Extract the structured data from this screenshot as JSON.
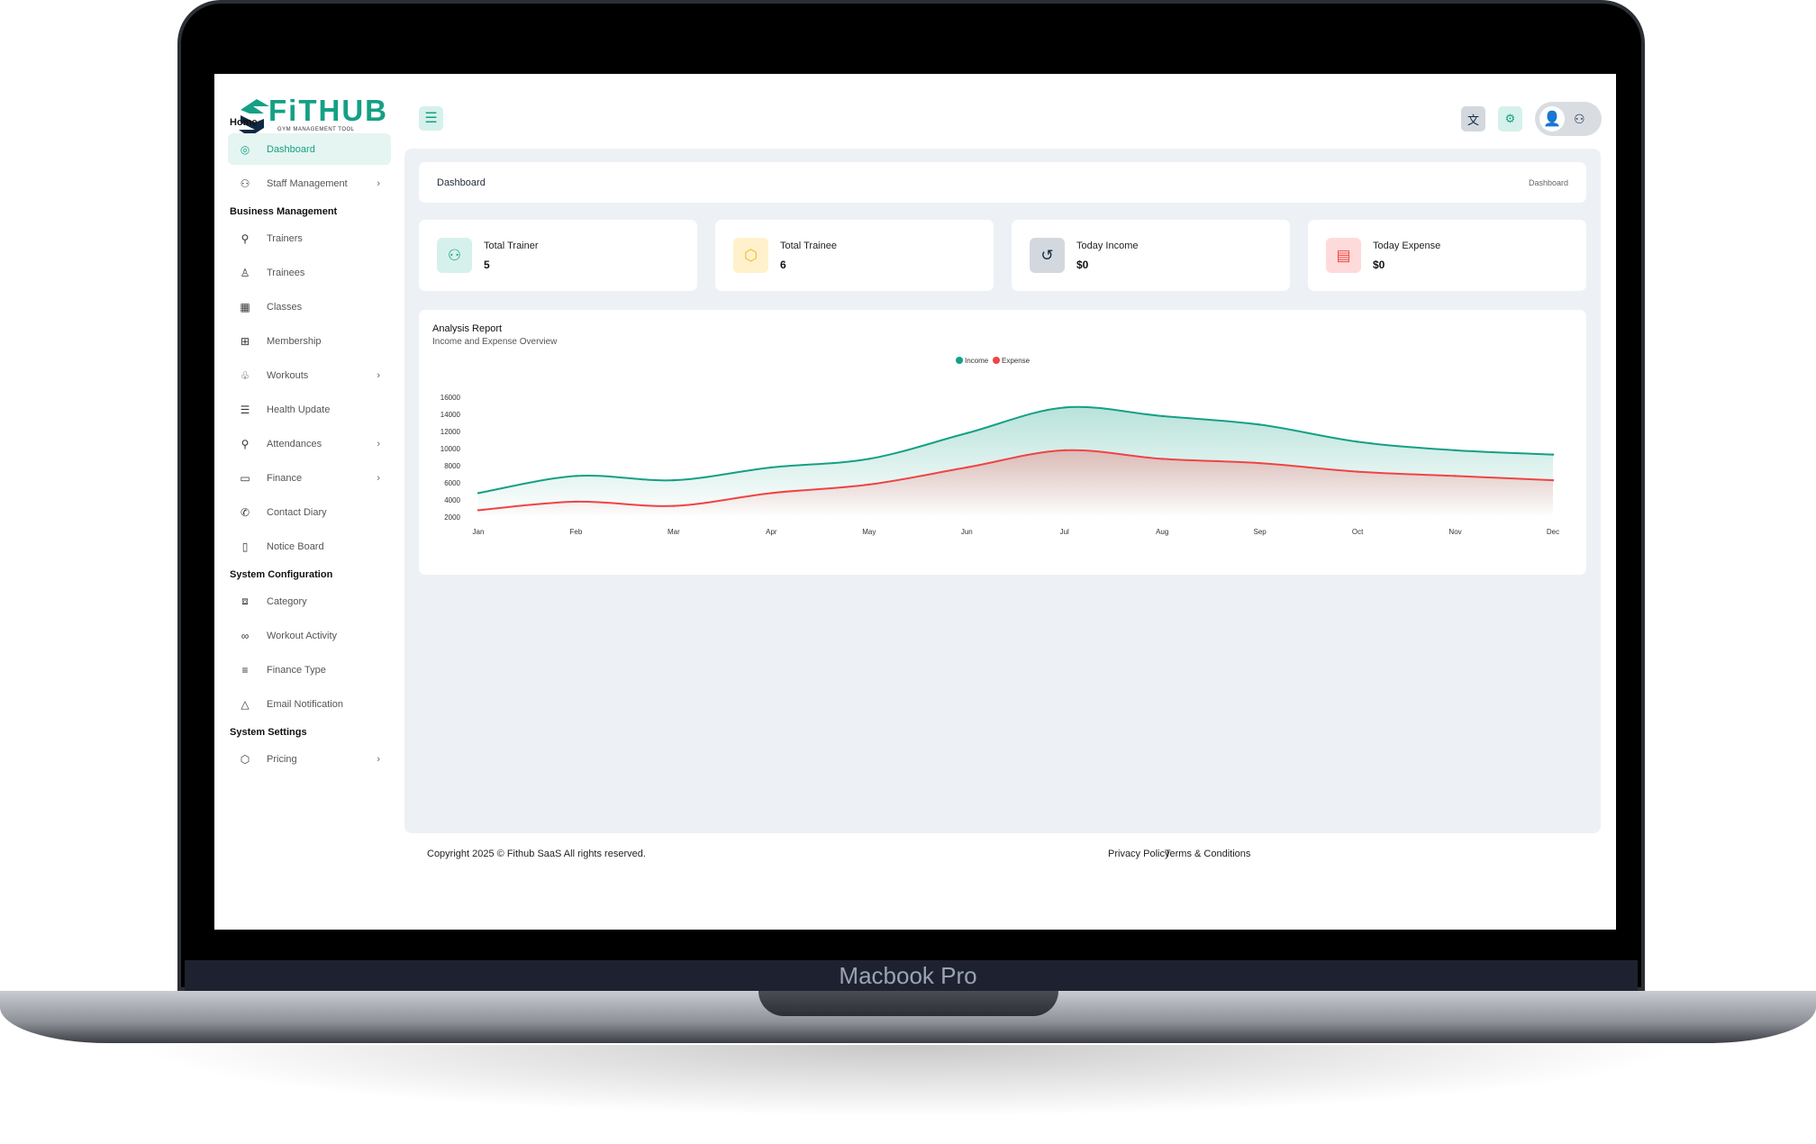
{
  "device_label": "Macbook Pro",
  "brand": {
    "name": "FiTHUB",
    "tagline": "GYM MANAGEMENT TOOL"
  },
  "sidebar": {
    "sections": [
      {
        "title": "Home",
        "items": [
          {
            "label": "Dashboard",
            "icon": "gauge-icon",
            "active": true
          },
          {
            "label": "Staff Management",
            "icon": "users-icon",
            "chevron": true
          }
        ]
      },
      {
        "title": "Business Management",
        "items": [
          {
            "label": "Trainers",
            "icon": "user-check-icon"
          },
          {
            "label": "Trainees",
            "icon": "user-icon"
          },
          {
            "label": "Classes",
            "icon": "calendar-icon"
          },
          {
            "label": "Membership",
            "icon": "gift-icon"
          },
          {
            "label": "Workouts",
            "icon": "award-icon",
            "chevron": true
          },
          {
            "label": "Health Update",
            "icon": "database-icon"
          },
          {
            "label": "Attendances",
            "icon": "user-check-icon",
            "chevron": true
          },
          {
            "label": "Finance",
            "icon": "wallet-icon",
            "chevron": true
          },
          {
            "label": "Contact Diary",
            "icon": "phone-icon"
          },
          {
            "label": "Notice Board",
            "icon": "notebook-icon"
          }
        ]
      },
      {
        "title": "System Configuration",
        "items": [
          {
            "label": "Category",
            "icon": "book-open-icon"
          },
          {
            "label": "Workout Activity",
            "icon": "activity-icon"
          },
          {
            "label": "Finance Type",
            "icon": "list-icon"
          },
          {
            "label": "Email Notification",
            "icon": "bell-icon"
          }
        ]
      },
      {
        "title": "System Settings",
        "items": [
          {
            "label": "Pricing",
            "icon": "package-icon",
            "chevron": true
          }
        ]
      }
    ]
  },
  "header": {
    "menu_icon": "menu-icon",
    "translate_icon": "translate-icon",
    "settings_icon": "settings-icon"
  },
  "breadcrumb": {
    "title": "Dashboard",
    "trail": "Dashboard"
  },
  "stats": [
    {
      "label": "Total Trainer",
      "value": "5",
      "icon": "users-icon",
      "bg": "#d6f1eb",
      "fg": "#14a085"
    },
    {
      "label": "Total Trainee",
      "value": "6",
      "icon": "box-icon",
      "bg": "#fff1cc",
      "fg": "#f5b40b"
    },
    {
      "label": "Today Income",
      "value": "$0",
      "icon": "history-icon",
      "bg": "#d3d8de",
      "fg": "#0f2942"
    },
    {
      "label": "Today Expense",
      "value": "$0",
      "icon": "card-icon",
      "bg": "#ffdada",
      "fg": "#ef4444"
    }
  ],
  "report": {
    "title": "Analysis Report",
    "subtitle": "Income and Expense Overview"
  },
  "chart_data": {
    "type": "area",
    "categories": [
      "Jan",
      "Feb",
      "Mar",
      "Apr",
      "May",
      "Jun",
      "Jul",
      "Aug",
      "Sep",
      "Oct",
      "Nov",
      "Dec"
    ],
    "series": [
      {
        "name": "Income",
        "color": "#14a085",
        "values": [
          4800,
          6800,
          6300,
          7800,
          8800,
          11800,
          14800,
          13800,
          12800,
          10800,
          9800,
          9300
        ]
      },
      {
        "name": "Expense",
        "color": "#ef4444",
        "values": [
          2800,
          3800,
          3300,
          4800,
          5800,
          7800,
          9800,
          8800,
          8300,
          7300,
          6800,
          6300
        ]
      }
    ],
    "yticks": [
      2000,
      4000,
      6000,
      8000,
      10000,
      12000,
      14000,
      16000
    ],
    "ylim": [
      2000,
      16000
    ],
    "legend": "top-center",
    "grid": false
  },
  "footer": {
    "copyright": "Copyright 2025 © Fithub SaaS All rights reserved.",
    "links": [
      "Privacy Policy",
      "Terms & Conditions"
    ]
  }
}
